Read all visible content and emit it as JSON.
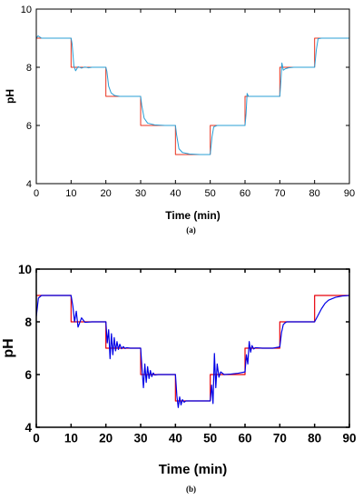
{
  "chart_data": [
    {
      "type": "line",
      "caption": "(a)",
      "xlabel": "Time (min)",
      "ylabel": "pH",
      "xlim": [
        0,
        90
      ],
      "ylim": [
        4,
        10
      ],
      "xticks": [
        "0",
        "10",
        "20",
        "30",
        "40",
        "50",
        "60",
        "70",
        "80",
        "90"
      ],
      "yticks": [
        "4",
        "6",
        "8",
        "10"
      ],
      "grid": false,
      "series": [
        {
          "role": "setpoint",
          "color": "#e8321e",
          "x": [
            0,
            10,
            10,
            20,
            20,
            30,
            30,
            40,
            40,
            50,
            50,
            60,
            60,
            70,
            70,
            80,
            80,
            90
          ],
          "y": [
            9,
            9,
            8,
            8,
            7,
            7,
            6,
            6,
            5,
            5,
            6,
            6,
            7,
            7,
            8,
            8,
            9,
            9
          ]
        },
        {
          "role": "measured",
          "color": "#2a9fd6",
          "x": [
            0,
            0.5,
            1.5,
            3,
            10,
            10.3,
            10.8,
            11.3,
            12,
            13,
            14,
            15,
            16,
            20,
            20.3,
            20.8,
            21.5,
            22.5,
            24,
            26,
            30,
            30.3,
            31,
            32,
            34,
            37,
            40,
            40.3,
            41,
            42,
            44,
            47,
            50,
            50.5,
            51,
            52,
            60,
            60.3,
            60.6,
            61,
            62,
            70,
            70.3,
            70.6,
            71,
            71.6,
            72.5,
            74,
            80,
            80.5,
            81,
            82,
            90
          ],
          "y": [
            9,
            9.08,
            9.0,
            9.0,
            9.0,
            8.8,
            8.05,
            7.88,
            8.02,
            7.97,
            8.01,
            7.98,
            8.0,
            8.0,
            7.85,
            7.35,
            7.12,
            7.03,
            7.0,
            7.0,
            7.0,
            6.7,
            6.25,
            6.08,
            6.02,
            6.0,
            6.0,
            5.7,
            5.2,
            5.07,
            5.02,
            5.0,
            5.0,
            5.6,
            5.95,
            6.0,
            6.0,
            6.4,
            7.1,
            7.0,
            7.0,
            7.0,
            7.5,
            8.15,
            7.9,
            7.95,
            7.98,
            8.0,
            8.0,
            8.6,
            8.98,
            9.0,
            9.0
          ]
        }
      ]
    },
    {
      "type": "line",
      "caption": "(b)",
      "xlabel": "Time (min)",
      "ylabel": "pH",
      "xlim": [
        0,
        90
      ],
      "ylim": [
        4,
        10
      ],
      "xticks": [
        "0",
        "10",
        "20",
        "30",
        "40",
        "50",
        "60",
        "70",
        "80",
        "90"
      ],
      "yticks": [
        "4",
        "6",
        "8",
        "10"
      ],
      "grid": false,
      "series": [
        {
          "role": "setpoint",
          "color": "#e8000b",
          "x": [
            0,
            10,
            10,
            20,
            20,
            30,
            30,
            40,
            40,
            50,
            50,
            60,
            60,
            70,
            70,
            80,
            80,
            90
          ],
          "y": [
            9,
            9,
            8,
            8,
            7,
            7,
            6,
            6,
            5,
            5,
            6,
            6,
            7,
            7,
            8,
            8,
            9,
            9
          ]
        },
        {
          "role": "measured",
          "color": "#0000e6",
          "x": [
            0,
            0.6,
            1.5,
            3,
            10,
            10.5,
            11,
            11.5,
            12,
            13,
            14,
            16,
            20,
            20.4,
            20.8,
            21.2,
            21.6,
            22,
            22.4,
            22.8,
            23.2,
            23.6,
            24,
            24.5,
            25,
            25.5,
            26,
            27,
            28,
            30,
            30.4,
            30.8,
            31.2,
            31.6,
            32,
            32.4,
            32.8,
            33.2,
            33.6,
            34,
            35,
            37,
            40,
            40.4,
            40.8,
            41.2,
            41.6,
            42,
            42.5,
            43,
            44,
            46,
            48,
            50,
            50.4,
            50.8,
            51.2,
            51.6,
            52,
            52.5,
            53,
            54,
            56,
            58,
            60,
            60.4,
            60.8,
            61.2,
            61.6,
            62,
            62.5,
            63,
            65,
            68,
            70,
            70.5,
            71,
            71.5,
            72,
            73,
            75,
            78,
            80,
            81,
            82,
            83,
            84,
            86,
            88,
            90
          ],
          "y": [
            8.2,
            8.9,
            9.0,
            9.0,
            9.0,
            8.6,
            8.0,
            8.4,
            7.8,
            8.15,
            7.98,
            8.0,
            8.0,
            7.2,
            7.7,
            6.6,
            7.55,
            6.75,
            7.4,
            6.9,
            7.25,
            6.95,
            7.15,
            6.98,
            7.06,
            6.99,
            7.02,
            7.0,
            7.0,
            7.0,
            6.2,
            5.5,
            6.4,
            5.7,
            6.3,
            5.85,
            6.15,
            5.92,
            6.06,
            5.98,
            6.0,
            6.0,
            6.0,
            5.2,
            4.75,
            5.15,
            4.85,
            5.05,
            4.95,
            5.0,
            5.0,
            5.0,
            5.0,
            5.0,
            5.6,
            4.9,
            6.8,
            5.5,
            6.4,
            5.9,
            6.1,
            6.0,
            6.02,
            6.05,
            6.1,
            6.75,
            6.4,
            7.25,
            6.85,
            7.1,
            6.97,
            7.02,
            7.0,
            7.0,
            7.05,
            7.6,
            7.9,
            7.96,
            8.0,
            8.0,
            8.0,
            8.0,
            8.0,
            8.25,
            8.5,
            8.7,
            8.82,
            8.93,
            8.98,
            9.0
          ]
        }
      ]
    }
  ]
}
